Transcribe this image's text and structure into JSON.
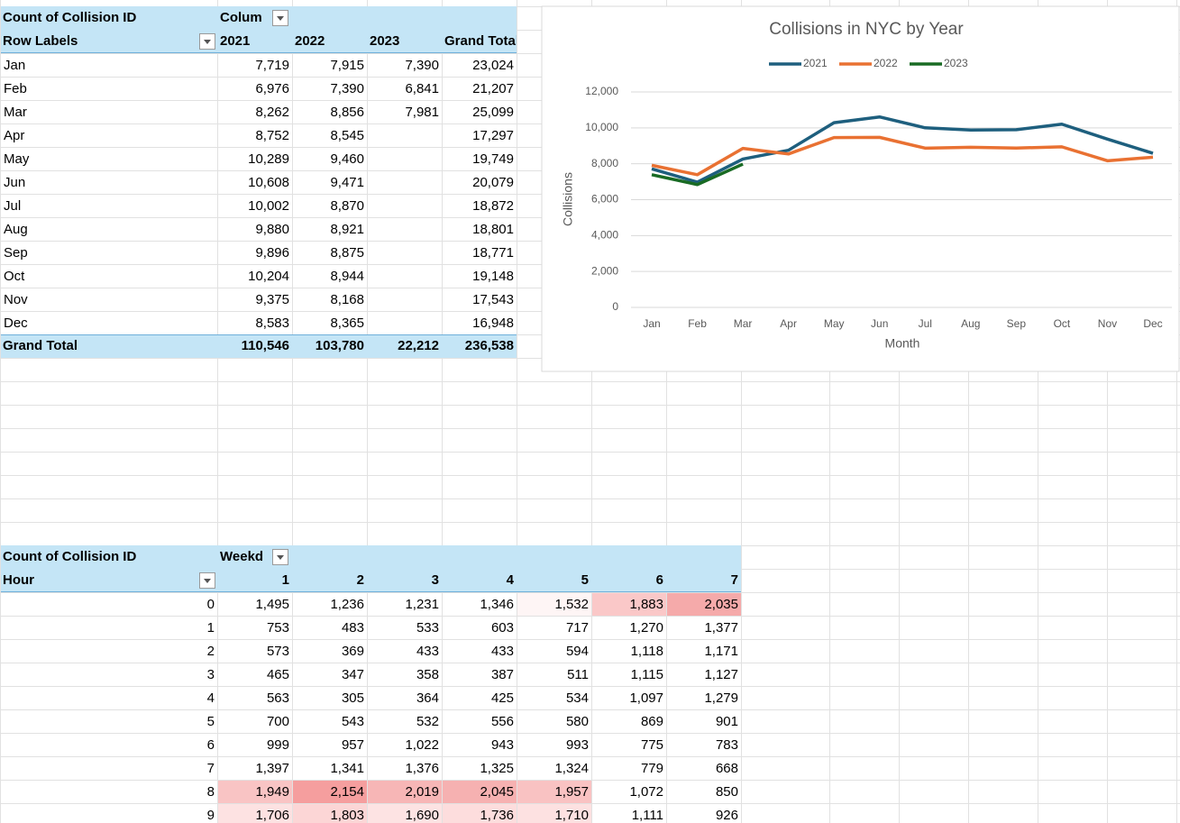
{
  "pivot_years": {
    "title": "Count of Collision ID",
    "column_field": "Colum",
    "row_field": "Row Labels",
    "columns": [
      "2021",
      "2022",
      "2023",
      "Grand Total"
    ],
    "rows": [
      [
        "Jan",
        "7,719",
        "7,915",
        "7,390",
        "23,024"
      ],
      [
        "Feb",
        "6,976",
        "7,390",
        "6,841",
        "21,207"
      ],
      [
        "Mar",
        "8,262",
        "8,856",
        "7,981",
        "25,099"
      ],
      [
        "Apr",
        "8,752",
        "8,545",
        "",
        "17,297"
      ],
      [
        "May",
        "10,289",
        "9,460",
        "",
        "19,749"
      ],
      [
        "Jun",
        "10,608",
        "9,471",
        "",
        "20,079"
      ],
      [
        "Jul",
        "10,002",
        "8,870",
        "",
        "18,872"
      ],
      [
        "Aug",
        "9,880",
        "8,921",
        "",
        "18,801"
      ],
      [
        "Sep",
        "9,896",
        "8,875",
        "",
        "18,771"
      ],
      [
        "Oct",
        "10,204",
        "8,944",
        "",
        "19,148"
      ],
      [
        "Nov",
        "9,375",
        "8,168",
        "",
        "17,543"
      ],
      [
        "Dec",
        "8,583",
        "8,365",
        "",
        "16,948"
      ]
    ],
    "total": [
      "Grand Total",
      "110,546",
      "103,780",
      "22,212",
      "236,538"
    ]
  },
  "chart_data": {
    "type": "line",
    "title": "Collisions in NYC by Year",
    "x_label": "Month",
    "y_label": "Collisions",
    "categories": [
      "Jan",
      "Feb",
      "Mar",
      "Apr",
      "May",
      "Jun",
      "Jul",
      "Aug",
      "Sep",
      "Oct",
      "Nov",
      "Dec"
    ],
    "series": [
      {
        "name": "2021",
        "color": "#1e5f7e",
        "values": [
          7719,
          6976,
          8262,
          8752,
          10289,
          10608,
          10002,
          9880,
          9896,
          10204,
          9375,
          8583
        ]
      },
      {
        "name": "2022",
        "color": "#e97132",
        "values": [
          7915,
          7390,
          8856,
          8545,
          9460,
          9471,
          8870,
          8921,
          8875,
          8944,
          8168,
          8365
        ]
      },
      {
        "name": "2023",
        "color": "#196b24",
        "values": [
          7390,
          6841,
          7981,
          null,
          null,
          null,
          null,
          null,
          null,
          null,
          null,
          null
        ]
      }
    ],
    "ylim": [
      0,
      12000
    ],
    "yticks": [
      0,
      {
        "value": 2000,
        "label": "2,000"
      },
      {
        "value": 4000,
        "label": "4,000"
      },
      {
        "value": 6000,
        "label": "6,000"
      },
      {
        "value": 8000,
        "label": "8,000"
      },
      {
        "value": 10000,
        "label": "10,000"
      },
      {
        "value": 12000,
        "label": "12,000"
      }
    ],
    "grid": true,
    "legend": "top"
  },
  "pivot_hours": {
    "title": "Count of Collision ID",
    "column_field": "Weekd",
    "row_field": "Hour",
    "columns": [
      "1",
      "2",
      "3",
      "4",
      "5",
      "6",
      "7"
    ],
    "rows": [
      [
        "0",
        "1,495",
        "1,236",
        "1,231",
        "1,346",
        "1,532",
        "1,883",
        "2,035"
      ],
      [
        "1",
        "753",
        "483",
        "533",
        "603",
        "717",
        "1,270",
        "1,377"
      ],
      [
        "2",
        "573",
        "369",
        "433",
        "433",
        "594",
        "1,118",
        "1,171"
      ],
      [
        "3",
        "465",
        "347",
        "358",
        "387",
        "511",
        "1,115",
        "1,127"
      ],
      [
        "4",
        "563",
        "305",
        "364",
        "425",
        "534",
        "1,097",
        "1,279"
      ],
      [
        "5",
        "700",
        "543",
        "532",
        "556",
        "580",
        "869",
        "901"
      ],
      [
        "6",
        "999",
        "957",
        "1,022",
        "943",
        "993",
        "775",
        "783"
      ],
      [
        "7",
        "1,397",
        "1,341",
        "1,376",
        "1,325",
        "1,324",
        "779",
        "668"
      ],
      [
        "8",
        "1,949",
        "2,154",
        "2,019",
        "2,045",
        "1,957",
        "1,072",
        "850"
      ],
      [
        "9",
        "1,706",
        "1,803",
        "1,690",
        "1,736",
        "1,710",
        "1,111",
        "926"
      ]
    ],
    "fills": [
      [
        null,
        null,
        null,
        null,
        "#fef5f5",
        "#fac8c8",
        "#f5aaaa"
      ],
      [
        null,
        null,
        null,
        null,
        null,
        null,
        null
      ],
      [
        null,
        null,
        null,
        null,
        null,
        null,
        null
      ],
      [
        null,
        null,
        null,
        null,
        null,
        null,
        null
      ],
      [
        null,
        null,
        null,
        null,
        null,
        null,
        null
      ],
      [
        null,
        null,
        null,
        null,
        null,
        null,
        null
      ],
      [
        null,
        null,
        null,
        null,
        null,
        null,
        null
      ],
      [
        null,
        null,
        null,
        null,
        null,
        null,
        null
      ],
      [
        "#f9c4c4",
        "#f59e9e",
        "#f7b6b6",
        "#f6b1b1",
        "#f9c2c2",
        null,
        null
      ],
      [
        "#fde2e2",
        "#fcd6d6",
        "#fde3e3",
        "#fddddd",
        "#fde1e1",
        null,
        null
      ]
    ]
  }
}
